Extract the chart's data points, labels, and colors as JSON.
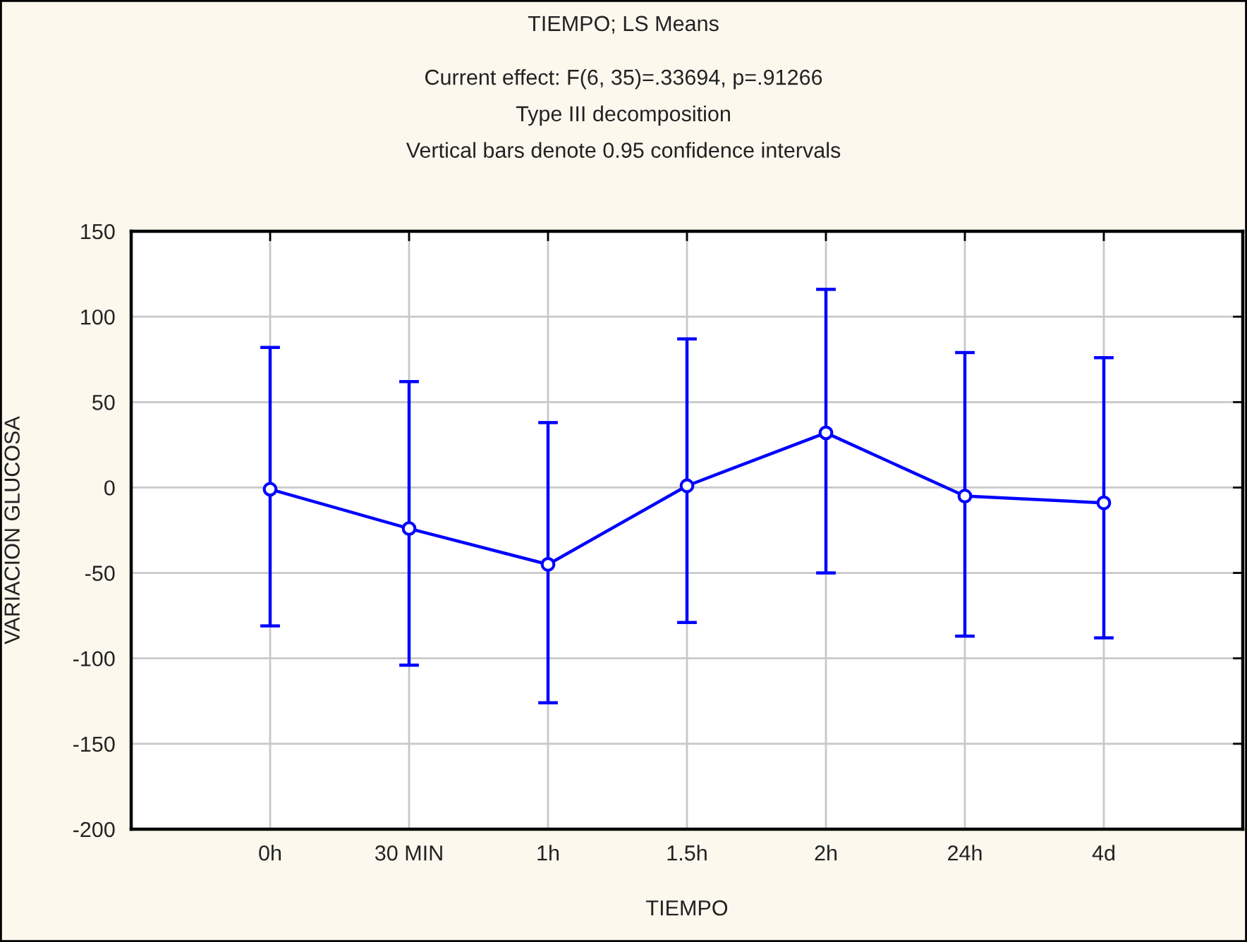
{
  "chart_data": {
    "type": "line",
    "title": "TIEMPO; LS Means",
    "subtitle": "Current effect: F(6, 35)=.33694, p=.91266\nType III decomposition\nVertical bars denote 0.95 confidence intervals",
    "xlabel": "TIEMPO",
    "ylabel": "VARIACION GLUCOSA",
    "categories": [
      "0h",
      "30 MIN",
      "1h",
      "1.5h",
      "2h",
      "24h",
      "4d"
    ],
    "series": [
      {
        "color": "#0000ff",
        "values": [
          -1,
          -24,
          -45,
          1,
          32,
          -5,
          -9
        ],
        "errors": [
          [
            -81,
            82
          ],
          [
            -104,
            62
          ],
          [
            -126,
            38
          ],
          [
            -79,
            87
          ],
          [
            -50,
            116
          ],
          [
            -87,
            79
          ],
          [
            -88,
            76
          ]
        ]
      }
    ],
    "ylim": [
      -200,
      150
    ],
    "yticks": [
      -200,
      -150,
      -100,
      -50,
      0,
      50,
      100,
      150
    ],
    "grid": true,
    "marker": "circle",
    "line_style": "solid"
  }
}
